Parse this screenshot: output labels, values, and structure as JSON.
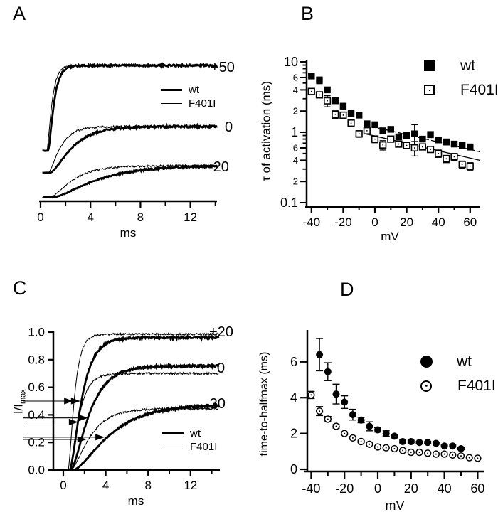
{
  "figure": {
    "bg": "#ffffff",
    "ink": "#000000"
  },
  "chart_data": [
    {
      "panel": "A",
      "type": "line",
      "xlabel": "ms",
      "x_ticks": [
        0,
        4,
        8,
        12
      ],
      "x_minor_ticks": [
        2,
        6,
        10,
        14
      ],
      "x_range": [
        0,
        14.2
      ],
      "legend": [
        {
          "label": "wt",
          "line": "thick"
        },
        {
          "label": "F401I",
          "line": "thin"
        }
      ],
      "trace_groups": [
        {
          "label": "+50",
          "baseline": 0.355,
          "plateau": 0.955,
          "wt_tau": 0.38,
          "wt_onset": 0.6,
          "f401i_tau": 0.33,
          "f401i_onset": 0.5
        },
        {
          "label": "0",
          "baseline": 0.2,
          "plateau": 0.525,
          "wt_tau": 1.45,
          "wt_onset": 0.75,
          "f401i_tau": 0.8,
          "f401i_onset": 0.6
        },
        {
          "label": "-20",
          "baseline": 0.028,
          "plateau": 0.25,
          "wt_tau": 2.9,
          "wt_onset": 0.95,
          "f401i_tau": 1.5,
          "f401i_onset": 0.75
        }
      ]
    },
    {
      "panel": "B",
      "type": "scatter",
      "yscale": "log",
      "ylabel": "τ of activation (ms)",
      "xlabel": "mV",
      "ylim": [
        0.1,
        10
      ],
      "xlim": [
        -45,
        65
      ],
      "x_ticks": [
        -40,
        -20,
        0,
        20,
        40,
        60
      ],
      "x_minor_ticks": [
        -30,
        -10,
        10,
        30,
        50
      ],
      "y_ticks": [
        {
          "v": 10,
          "label": "10",
          "big": true
        },
        {
          "v": 6,
          "label": "6",
          "big": false
        },
        {
          "v": 4,
          "label": "4",
          "big": false
        },
        {
          "v": 2,
          "label": "2",
          "big": false
        },
        {
          "v": 1,
          "label": "1",
          "big": true
        },
        {
          "v": 0.6,
          "label": "6",
          "big": false
        },
        {
          "v": 0.4,
          "label": "4",
          "big": false
        },
        {
          "v": 0.2,
          "label": "2",
          "big": false
        },
        {
          "v": 0.1,
          "label": "0.1",
          "big": true
        }
      ],
      "y_minor_ticks": [
        9,
        8,
        7,
        5,
        3,
        0.9,
        0.8,
        0.7,
        0.5,
        0.3
      ],
      "legend": [
        {
          "label": "wt",
          "marker": "filled-square"
        },
        {
          "label": "F401I",
          "marker": "open-square"
        }
      ],
      "series": [
        {
          "name": "wt",
          "marker": "filled-square",
          "x": [
            -40,
            -35,
            -30,
            -25,
            -20,
            -15,
            -10,
            -5,
            0,
            5,
            10,
            15,
            20,
            25,
            30,
            35,
            40,
            45,
            50,
            55,
            60
          ],
          "y": [
            6.3,
            5.5,
            4.0,
            2.8,
            2.35,
            1.85,
            1.75,
            1.32,
            1.28,
            1.05,
            1.1,
            0.86,
            0.9,
            0.95,
            0.8,
            0.93,
            0.78,
            0.73,
            0.68,
            0.65,
            0.62
          ],
          "err": [
            0.3,
            0.6,
            0.25,
            0.2,
            0.18,
            0.12,
            0.1,
            0.1,
            0.08,
            0.07,
            0.08,
            0.06,
            0.07,
            0.33,
            0.06,
            0.09,
            0.07,
            0.07,
            0.05,
            0.05,
            0.06
          ]
        },
        {
          "name": "F401I",
          "marker": "open-square",
          "x": [
            -40,
            -35,
            -30,
            -25,
            -20,
            -15,
            -10,
            -5,
            0,
            5,
            10,
            15,
            20,
            25,
            30,
            35,
            40,
            45,
            50,
            55,
            60
          ],
          "y": [
            3.8,
            3.4,
            2.8,
            1.8,
            1.75,
            1.35,
            0.95,
            1.05,
            0.8,
            0.66,
            0.8,
            0.68,
            0.65,
            0.6,
            0.62,
            0.57,
            0.5,
            0.42,
            0.45,
            0.35,
            0.33
          ],
          "err": [
            0.4,
            0.3,
            0.5,
            0.22,
            0.18,
            0.14,
            0.1,
            0.1,
            0.09,
            0.1,
            0.07,
            0.06,
            0.06,
            0.14,
            0.05,
            0.05,
            0.06,
            0.05,
            0.05,
            0.04,
            0.04
          ]
        }
      ],
      "fit_lines": [
        {
          "series": "wt",
          "style": "dashed",
          "x": [
            -6,
            66
          ],
          "y": [
            1.27,
            0.53
          ]
        },
        {
          "series": "F401I",
          "style": "solid",
          "x": [
            -6,
            66
          ],
          "y": [
            0.95,
            0.4
          ]
        }
      ]
    },
    {
      "panel": "C",
      "type": "line",
      "ylabel_main": "I/I",
      "ylabel_sub": "max",
      "xlabel": "ms",
      "y_ticks": [
        "0.0",
        "0.2",
        "0.4",
        "0.6",
        "0.8",
        "1.0"
      ],
      "x_ticks": [
        0,
        4,
        8,
        12
      ],
      "x_minor_ticks": [
        2,
        6,
        10,
        14
      ],
      "x_range": [
        0,
        14.7
      ],
      "ylim": [
        0,
        1
      ],
      "legend": [
        {
          "label": "wt",
          "line": "thick"
        },
        {
          "label": "F401I",
          "line": "thin"
        }
      ],
      "trace_groups": [
        {
          "label": "+20",
          "baseline": 0,
          "wt_plateau": 0.96,
          "wt_tau": 0.95,
          "wt_onset": 0.6,
          "f401i_plateau": 0.985,
          "f401i_tau": 0.5,
          "f401i_onset": 0.45
        },
        {
          "label": "0",
          "baseline": 0,
          "wt_plateau": 0.755,
          "wt_tau": 1.45,
          "wt_onset": 0.7,
          "f401i_plateau": 0.7,
          "f401i_tau": 0.75,
          "f401i_onset": 0.55
        },
        {
          "label": "-20",
          "baseline": 0,
          "wt_plateau": 0.475,
          "wt_tau": 2.9,
          "wt_onset": 0.9,
          "f401i_plateau": 0.445,
          "f401i_tau": 1.5,
          "f401i_onset": 0.7
        }
      ],
      "halfmax_lines": [
        {
          "level": 0.5,
          "tips_ms": [
            0.95,
            1.6
          ]
        },
        {
          "level": 0.378,
          "tips_ms": [
            2.35
          ]
        },
        {
          "level": 0.348,
          "tips_ms": [
            1.4
          ]
        },
        {
          "level": 0.238,
          "tips_ms": [
            3.9
          ]
        },
        {
          "level": 0.222,
          "tips_ms": [
            2.2
          ]
        }
      ]
    },
    {
      "panel": "D",
      "type": "scatter",
      "ylabel": "time-to-halfmax  (ms)",
      "xlabel": "mV",
      "ylim": [
        0,
        7.7
      ],
      "xlim": [
        -45,
        65
      ],
      "y_ticks": [
        0,
        2,
        4,
        6
      ],
      "x_ticks": [
        -40,
        -20,
        0,
        20,
        40,
        60
      ],
      "x_minor_ticks": [
        -30,
        -10,
        10,
        30,
        50
      ],
      "legend": [
        {
          "label": "wt",
          "marker": "filled-circle"
        },
        {
          "label": "F401I",
          "marker": "open-circle"
        }
      ],
      "series": [
        {
          "name": "wt",
          "marker": "filled-circle",
          "x": [
            -35,
            -30,
            -25,
            -20,
            -15,
            -10,
            -5,
            0,
            5,
            10,
            15,
            20,
            25,
            30,
            35,
            40,
            45,
            50
          ],
          "y": [
            6.4,
            5.45,
            4.2,
            3.75,
            3.05,
            2.75,
            2.4,
            2.2,
            2.0,
            1.85,
            1.55,
            1.55,
            1.5,
            1.5,
            1.45,
            1.3,
            1.3,
            1.15
          ],
          "err": [
            0.9,
            0.5,
            0.55,
            0.35,
            0.3,
            0.15,
            0.25,
            0.12,
            0.15,
            0.1,
            0.08,
            0.07,
            0.06,
            0.05,
            0.05,
            0.05,
            0.05,
            0.05
          ]
        },
        {
          "name": "F401I",
          "marker": "open-circle",
          "x": [
            -40,
            -35,
            -30,
            -25,
            -20,
            -15,
            -10,
            -5,
            0,
            5,
            10,
            15,
            20,
            25,
            30,
            35,
            40,
            45,
            50,
            55,
            60
          ],
          "y": [
            4.15,
            3.25,
            2.8,
            2.4,
            2.0,
            1.75,
            1.55,
            1.4,
            1.25,
            1.2,
            1.15,
            1.05,
            0.95,
            0.95,
            0.9,
            0.85,
            0.85,
            0.8,
            0.75,
            0.65,
            0.62
          ],
          "err": [
            0.2,
            0.25,
            0.15,
            0.1,
            0.08,
            0.07,
            0.06,
            0.05,
            0.05,
            0.05,
            0.04,
            0.04,
            0.04,
            0.04,
            0.04,
            0.03,
            0.03,
            0.03,
            0.03,
            0.03,
            0.03
          ]
        }
      ]
    }
  ]
}
